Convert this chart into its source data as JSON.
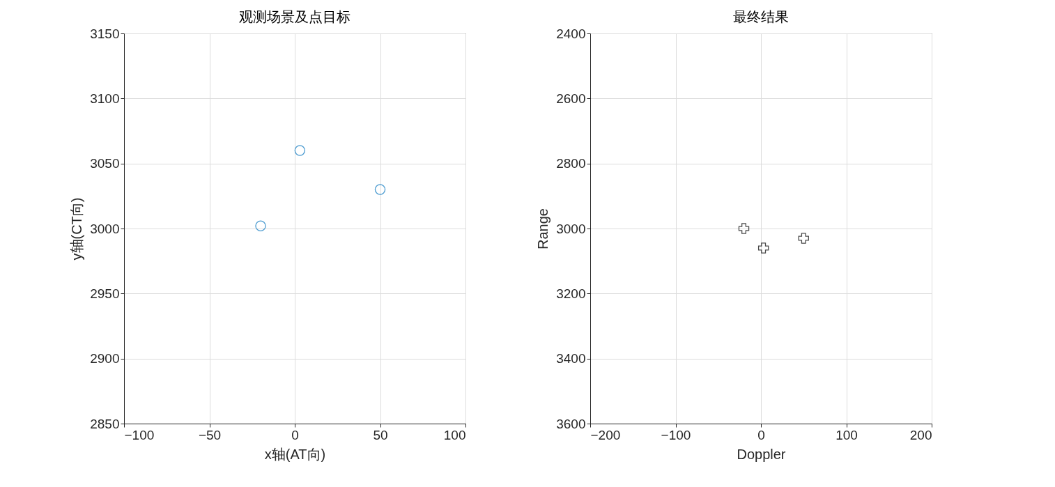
{
  "chart_data": [
    {
      "type": "scatter",
      "title": "观测场景及点目标",
      "xlabel": "x轴(AT向)",
      "ylabel": "y轴(CT向)",
      "x": [
        -20,
        3,
        50
      ],
      "values": [
        3002,
        3060,
        3030
      ],
      "color": "#0072bd",
      "marker": "circle",
      "xlim": [
        -100,
        100
      ],
      "ylim": [
        2850,
        3150
      ],
      "xticks": [
        -100,
        -50,
        0,
        50,
        100
      ],
      "yticks": [
        2850,
        2900,
        2950,
        3000,
        3050,
        3100,
        3150
      ],
      "grid": true
    },
    {
      "type": "scatter",
      "title": "最终结果",
      "xlabel": "Doppler",
      "ylabel": "Range",
      "x": [
        -20,
        3,
        50
      ],
      "values": [
        3000,
        3060,
        3030
      ],
      "color": "#000000",
      "marker": "cross",
      "xlim": [
        -200,
        200
      ],
      "ylim": [
        3600,
        2400
      ],
      "xticks": [
        -200,
        -100,
        0,
        100,
        200
      ],
      "yticks": [
        2400,
        2600,
        2800,
        3000,
        3200,
        3400,
        3600
      ],
      "grid": true
    }
  ]
}
